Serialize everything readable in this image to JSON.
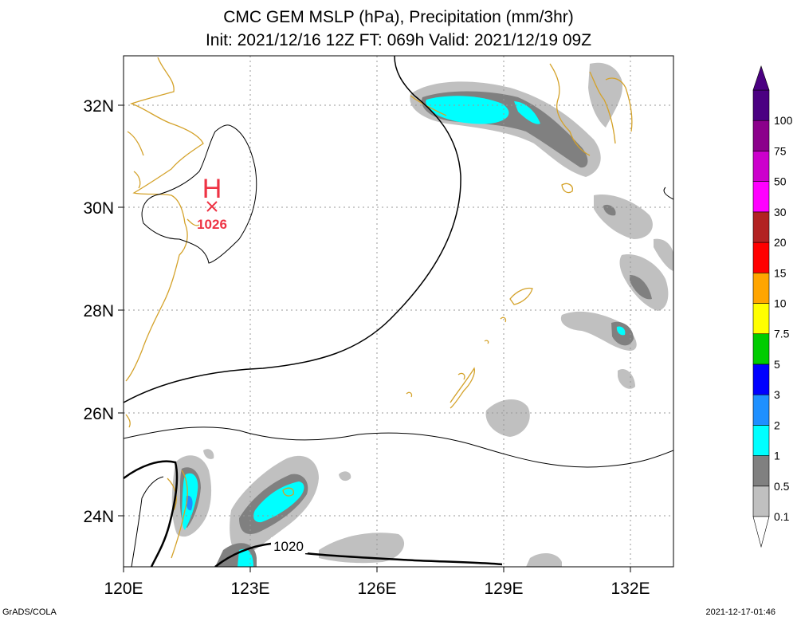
{
  "title": {
    "line1": "CMC GEM MSLP (hPa), Precipitation (mm/3hr)",
    "line2": "Init: 2021/12/16 12Z  FT: 069h  Valid: 2021/12/19 09Z"
  },
  "axes": {
    "lat_labels": [
      "32N",
      "30N",
      "28N",
      "26N",
      "24N"
    ],
    "lon_labels": [
      "120E",
      "123E",
      "126E",
      "129E",
      "132E"
    ]
  },
  "pressure": {
    "high_symbol": "H",
    "high_value": "1026",
    "isobar_label": "1020"
  },
  "colorbar": {
    "labels": [
      "0.1",
      "0.5",
      "1",
      "2",
      "3",
      "5",
      "7.5",
      "10",
      "15",
      "20",
      "30",
      "50",
      "75",
      "100"
    ],
    "colors": [
      "#c0c0c0",
      "#808080",
      "#00ffff",
      "#1e90ff",
      "#0000ff",
      "#00cc00",
      "#ffff00",
      "#ffa500",
      "#ff0000",
      "#b22222",
      "#ff00ff",
      "#cc00cc",
      "#8b008b",
      "#4b0082"
    ]
  },
  "footer": {
    "left": "GrADS/COLA",
    "right": "2021-12-17-01:46"
  }
}
